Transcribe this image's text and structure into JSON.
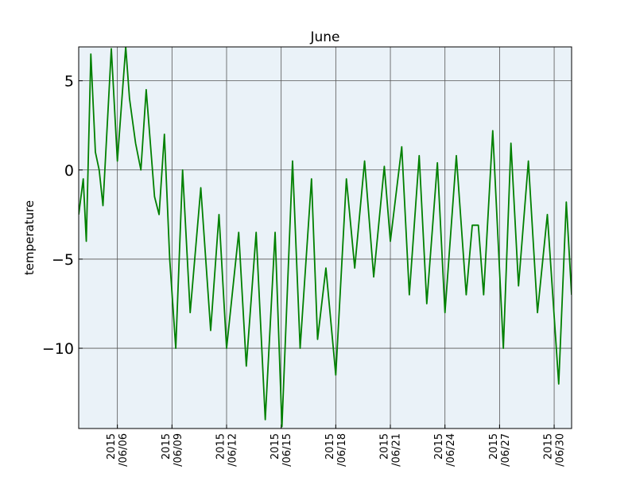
{
  "chart_data": {
    "type": "line",
    "title": "June",
    "ylabel": "temperature",
    "series": [
      {
        "name": "temperature",
        "color": "#008000",
        "x": [
          "2015-06-03T21:00",
          "2015-06-04T03:00",
          "2015-06-04T07:00",
          "2015-06-04T13:00",
          "2015-06-04T19:00",
          "2015-06-05T00:00",
          "2015-06-05T05:00",
          "2015-06-05T16:00",
          "2015-06-06T00:00",
          "2015-06-06T11:00",
          "2015-06-06T16:00",
          "2015-06-07T00:00",
          "2015-06-07T07:00",
          "2015-06-07T14:00",
          "2015-06-08T01:00",
          "2015-06-08T07:00",
          "2015-06-08T14:00",
          "2015-06-08T21:00",
          "2015-06-09T05:00",
          "2015-06-09T14:00",
          "2015-06-10T00:00",
          "2015-06-10T14:00",
          "2015-06-11T03:00",
          "2015-06-11T14:00",
          "2015-06-12T00:00",
          "2015-06-12T16:00",
          "2015-06-13T02:00",
          "2015-06-13T15:00",
          "2015-06-14T03:00",
          "2015-06-14T16:00",
          "2015-06-15T01:00",
          "2015-06-15T15:00",
          "2015-06-16T01:00",
          "2015-06-16T16:00",
          "2015-06-17T00:00",
          "2015-06-17T11:00",
          "2015-06-18T00:00",
          "2015-06-18T14:00",
          "2015-06-19T01:00",
          "2015-06-19T14:00",
          "2015-06-20T02:00",
          "2015-06-20T16:00",
          "2015-06-21T00:00",
          "2015-06-21T15:00",
          "2015-06-22T01:00",
          "2015-06-22T14:00",
          "2015-06-23T00:00",
          "2015-06-23T14:00",
          "2015-06-24T00:00",
          "2015-06-24T15:00",
          "2015-06-25T04:00",
          "2015-06-25T12:00",
          "2015-06-25T20:00",
          "2015-06-26T03:00",
          "2015-06-26T15:00",
          "2015-06-27T05:00",
          "2015-06-27T15:00",
          "2015-06-28T01:00",
          "2015-06-28T14:00",
          "2015-06-29T02:00",
          "2015-06-29T15:00",
          "2015-06-30T06:00",
          "2015-06-30T16:00",
          "2015-06-30T23:00"
        ],
        "values": [
          -2.5,
          -0.5,
          -4,
          6.5,
          1,
          0,
          -2,
          6.8,
          0.5,
          6.9,
          4,
          1.5,
          0,
          4.5,
          -1.5,
          -2.5,
          2,
          -5,
          -10,
          0,
          -8,
          -1,
          -9,
          -2.5,
          -10,
          -3.5,
          -11,
          -3.5,
          -14,
          -3.5,
          -14.4,
          0.5,
          -10,
          -0.5,
          -9.5,
          -5.5,
          -11.5,
          -0.5,
          -5.5,
          0.5,
          -6,
          0.2,
          -4,
          1.3,
          -7,
          0.8,
          -7.5,
          0.4,
          -8,
          0.8,
          -7,
          -3.1,
          -3.1,
          -7,
          2.2,
          -10,
          1.5,
          -6.5,
          0.5,
          -8,
          -2.5,
          -12,
          -1.8,
          -7
        ]
      }
    ],
    "xlim": [
      "2015-06-03T21:00",
      "2015-06-30T23:00"
    ],
    "xticks": [
      {
        "value": "2015-06-06",
        "label": "2015\n/06/06"
      },
      {
        "value": "2015-06-09",
        "label": "2015\n/06/09"
      },
      {
        "value": "2015-06-12",
        "label": "2015\n/06/12"
      },
      {
        "value": "2015-06-15",
        "label": "2015\n/06/15"
      },
      {
        "value": "2015-06-18",
        "label": "2015\n/06/18"
      },
      {
        "value": "2015-06-21",
        "label": "2015\n/06/21"
      },
      {
        "value": "2015-06-24",
        "label": "2015\n/06/24"
      },
      {
        "value": "2015-06-27",
        "label": "2015\n/06/27"
      },
      {
        "value": "2015-06-30",
        "label": "2015\n/06/30"
      }
    ],
    "ylim": [
      -14.5,
      6.9
    ],
    "yticks": [
      {
        "value": -10,
        "label": "−10"
      },
      {
        "value": -5,
        "label": "−5"
      },
      0,
      5
    ],
    "grid": true
  }
}
